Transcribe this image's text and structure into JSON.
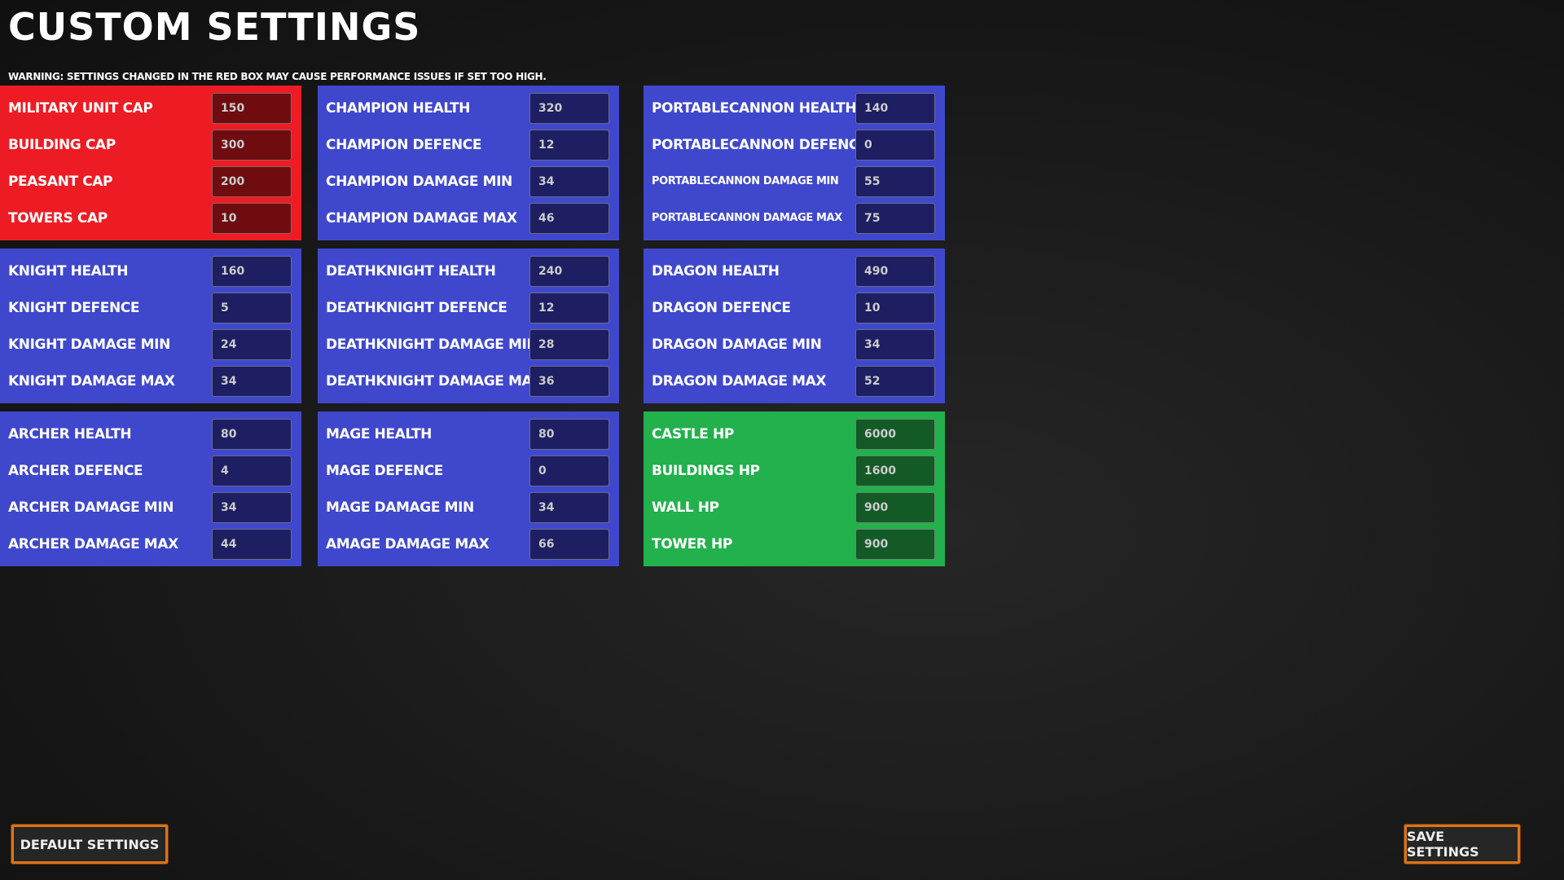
{
  "title": "Custom Settings",
  "warning": "Warning: Settings changed in the red box may cause performance issues if set too high.",
  "colors": {
    "red": "#ed1c24",
    "red_input": "#6e0c10",
    "blue": "#3f48cc",
    "blue_input": "#1e1f62",
    "green": "#22b14c",
    "green_input": "#145a27",
    "button_border": "#d9751a"
  },
  "panels": [
    {
      "color": "red",
      "rows": [
        {
          "label": "Military Unit Cap",
          "value": "150"
        },
        {
          "label": "Building Cap",
          "value": "300"
        },
        {
          "label": "Peasant Cap",
          "value": "200"
        },
        {
          "label": "Towers Cap",
          "value": "10"
        }
      ]
    },
    {
      "color": "blue",
      "rows": [
        {
          "label": "Champion Health",
          "value": "320"
        },
        {
          "label": "Champion Defence",
          "value": "12"
        },
        {
          "label": "Champion Damage Min",
          "value": "34"
        },
        {
          "label": "Champion Damage Max",
          "value": "46"
        }
      ]
    },
    {
      "color": "blue",
      "rows": [
        {
          "label": "PortableCannon Health",
          "value": "140"
        },
        {
          "label": "PortableCannon Defence",
          "value": "0"
        },
        {
          "label": "PortableCannon Damage Min",
          "value": "55"
        },
        {
          "label": "PortableCannon Damage Max",
          "value": "75"
        }
      ]
    },
    {
      "color": "blue",
      "rows": [
        {
          "label": "Knight Health",
          "value": "160"
        },
        {
          "label": "Knight Defence",
          "value": "5"
        },
        {
          "label": "Knight Damage Min",
          "value": "24"
        },
        {
          "label": "Knight Damage Max",
          "value": "34"
        }
      ]
    },
    {
      "color": "blue",
      "rows": [
        {
          "label": "DeathKnight Health",
          "value": "240"
        },
        {
          "label": "DeathKnight Defence",
          "value": "12"
        },
        {
          "label": "DeathKnight Damage Min",
          "value": "28"
        },
        {
          "label": "DeathKnight Damage Max",
          "value": "36"
        }
      ]
    },
    {
      "color": "blue",
      "rows": [
        {
          "label": "Dragon Health",
          "value": "490"
        },
        {
          "label": "Dragon Defence",
          "value": "10"
        },
        {
          "label": "Dragon Damage Min",
          "value": "34"
        },
        {
          "label": "Dragon Damage Max",
          "value": "52"
        }
      ]
    },
    {
      "color": "blue",
      "rows": [
        {
          "label": "Archer Health",
          "value": "80"
        },
        {
          "label": "Archer Defence",
          "value": "4"
        },
        {
          "label": "Archer Damage Min",
          "value": "34"
        },
        {
          "label": "Archer Damage Max",
          "value": "44"
        }
      ]
    },
    {
      "color": "blue",
      "rows": [
        {
          "label": "Mage Health",
          "value": "80"
        },
        {
          "label": "Mage Defence",
          "value": "0"
        },
        {
          "label": "Mage Damage Min",
          "value": "34"
        },
        {
          "label": "Amage Damage Max",
          "value": "66"
        }
      ]
    },
    {
      "color": "green",
      "rows": [
        {
          "label": "Castle HP",
          "value": "6000"
        },
        {
          "label": "Buildings HP",
          "value": "1600"
        },
        {
          "label": "Wall HP",
          "value": "900"
        },
        {
          "label": "Tower HP",
          "value": "900"
        }
      ]
    }
  ],
  "buttons": {
    "default": "Default Settings",
    "save": "Save Settings"
  }
}
